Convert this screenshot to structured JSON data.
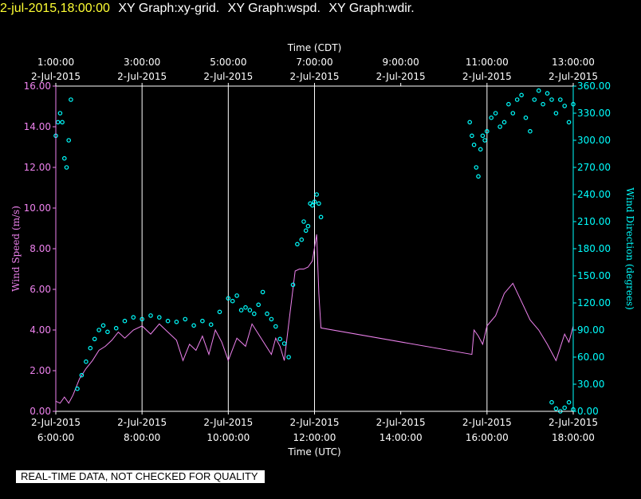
{
  "header": {
    "timestamp": "2-jul-2015,18:00:00",
    "graphs": [
      "XY Graph:xy-grid.",
      "XY Graph:wspd.",
      "XY Graph:wdir."
    ]
  },
  "disclaimer": "REAL-TIME DATA, NOT CHECKED FOR QUALITY",
  "colors": {
    "background": "#000000",
    "axis": "#ffffff",
    "grid": "#ffffff",
    "wind_speed": "#ee82ee",
    "wind_direction": "#00ffff",
    "timestamp": "#ffff33"
  },
  "chart_data": {
    "type": "line",
    "x_range_utc_hours": [
      6,
      18
    ],
    "top_axis": {
      "title": "Time (CDT)",
      "ticks": [
        {
          "t": 6,
          "time": "1:00:00",
          "date": "2-Jul-2015"
        },
        {
          "t": 8,
          "time": "3:00:00",
          "date": "2-Jul-2015"
        },
        {
          "t": 10,
          "time": "5:00:00",
          "date": "2-Jul-2015"
        },
        {
          "t": 12,
          "time": "7:00:00",
          "date": "2-Jul-2015"
        },
        {
          "t": 14,
          "time": "9:00:00",
          "date": "2-Jul-2015"
        },
        {
          "t": 16,
          "time": "11:00:00",
          "date": "2-Jul-2015"
        },
        {
          "t": 18,
          "time": "13:00:00",
          "date": "2-Jul-2015"
        }
      ]
    },
    "bottom_axis": {
      "title": "Time (UTC)",
      "ticks": [
        {
          "t": 6,
          "date": "2-Jul-2015",
          "time": "6:00:00"
        },
        {
          "t": 8,
          "date": "2-Jul-2015",
          "time": "8:00:00"
        },
        {
          "t": 10,
          "date": "2-Jul-2015",
          "time": "10:00:00"
        },
        {
          "t": 12,
          "date": "2-Jul-2015",
          "time": "12:00:00"
        },
        {
          "t": 14,
          "date": "2-Jul-2015",
          "time": "14:00:00"
        },
        {
          "t": 16,
          "date": "2-Jul-2015",
          "time": "16:00:00"
        },
        {
          "t": 18,
          "date": "2-Jul-2015",
          "time": "18:00:00"
        }
      ]
    },
    "grid_lines_utc": [
      8,
      10,
      12,
      16
    ],
    "left_axis": {
      "title": "Wind Speed (m/s)",
      "ylim": [
        0,
        16
      ],
      "ticks": [
        {
          "v": 0,
          "label": "0.00"
        },
        {
          "v": 2,
          "label": "2.00"
        },
        {
          "v": 4,
          "label": "4.00"
        },
        {
          "v": 6,
          "label": "6.00"
        },
        {
          "v": 8,
          "label": "8.00"
        },
        {
          "v": 10,
          "label": "10.00"
        },
        {
          "v": 12,
          "label": "12.00"
        },
        {
          "v": 14,
          "label": "14.00"
        },
        {
          "v": 16,
          "label": "16.00"
        }
      ]
    },
    "right_axis": {
      "title": "Wind Direction (degrees)",
      "ylim": [
        0,
        360
      ],
      "ticks": [
        {
          "v": 0,
          "label": "0.00"
        },
        {
          "v": 30,
          "label": "30.00"
        },
        {
          "v": 60,
          "label": "60.00"
        },
        {
          "v": 90,
          "label": "90.00"
        },
        {
          "v": 120,
          "label": "120.00"
        },
        {
          "v": 150,
          "label": "150.00"
        },
        {
          "v": 180,
          "label": "180.00"
        },
        {
          "v": 210,
          "label": "210.00"
        },
        {
          "v": 240,
          "label": "240.00"
        },
        {
          "v": 270,
          "label": "270.00"
        },
        {
          "v": 300,
          "label": "300.00"
        },
        {
          "v": 330,
          "label": "330.00"
        },
        {
          "v": 360,
          "label": "360.00"
        }
      ]
    },
    "series": [
      {
        "type": "line",
        "axis": "left",
        "color": "#ee82ee",
        "x": [
          6.0,
          6.1,
          6.2,
          6.3,
          6.4,
          6.55,
          6.7,
          6.85,
          7.0,
          7.15,
          7.3,
          7.45,
          7.6,
          7.8,
          8.0,
          8.2,
          8.4,
          8.6,
          8.8,
          8.95,
          9.1,
          9.25,
          9.4,
          9.55,
          9.7,
          9.85,
          10.0,
          10.2,
          10.4,
          10.55,
          10.7,
          10.85,
          11.0,
          11.1,
          11.2,
          11.3,
          11.4,
          11.55,
          11.65,
          11.75,
          11.85,
          11.95,
          12.05,
          12.1,
          12.15,
          15.65,
          15.7,
          15.8,
          15.9,
          16.0,
          16.2,
          16.4,
          16.6,
          16.8,
          17.0,
          17.2,
          17.4,
          17.6,
          17.8,
          17.9,
          18.0
        ],
        "y": [
          0.5,
          0.4,
          0.7,
          0.4,
          0.8,
          1.6,
          2.1,
          2.5,
          3.0,
          3.2,
          3.5,
          3.9,
          3.6,
          4.0,
          4.2,
          3.8,
          4.3,
          3.9,
          3.5,
          2.5,
          3.3,
          3.0,
          3.7,
          2.8,
          4.0,
          3.4,
          2.5,
          3.6,
          3.2,
          4.3,
          3.8,
          3.3,
          2.8,
          3.6,
          3.2,
          2.5,
          4.3,
          6.9,
          7.0,
          7.0,
          7.1,
          7.4,
          8.7,
          5.8,
          4.1,
          2.8,
          4.0,
          3.7,
          3.3,
          4.2,
          4.7,
          5.8,
          6.3,
          5.4,
          4.5,
          4.0,
          3.3,
          2.5,
          3.8,
          3.4,
          4.2
        ]
      },
      {
        "type": "scatter",
        "axis": "right",
        "color": "#00ffff",
        "x": [
          6.0,
          6.05,
          6.1,
          6.15,
          6.2,
          6.25,
          6.3,
          6.35,
          6.5,
          6.6,
          6.7,
          6.8,
          6.9,
          7.0,
          7.1,
          7.2,
          7.4,
          7.6,
          7.8,
          8.0,
          8.2,
          8.4,
          8.6,
          8.8,
          9.0,
          9.2,
          9.4,
          9.6,
          9.8,
          10.0,
          10.1,
          10.2,
          10.3,
          10.4,
          10.5,
          10.6,
          10.7,
          10.8,
          10.9,
          11.0,
          11.1,
          11.2,
          11.3,
          11.4,
          11.5,
          11.6,
          11.7,
          11.75,
          11.8,
          11.85,
          11.9,
          11.95,
          12.0,
          12.05,
          12.1,
          12.15,
          15.6,
          15.65,
          15.7,
          15.75,
          15.8,
          15.85,
          15.9,
          15.95,
          16.0,
          16.1,
          16.2,
          16.3,
          16.4,
          16.5,
          16.6,
          16.7,
          16.8,
          16.9,
          17.0,
          17.1,
          17.2,
          17.3,
          17.4,
          17.5,
          17.6,
          17.7,
          17.8,
          17.9,
          18.0,
          17.5,
          17.6,
          17.7,
          17.8,
          17.9,
          18.0
        ],
        "y": [
          305,
          320,
          330,
          320,
          280,
          270,
          300,
          345,
          25,
          40,
          55,
          70,
          80,
          90,
          95,
          88,
          92,
          100,
          104,
          102,
          106,
          104,
          100,
          99,
          102,
          95,
          100,
          96,
          110,
          125,
          122,
          128,
          112,
          115,
          112,
          108,
          118,
          132,
          108,
          102,
          94,
          80,
          75,
          60,
          140,
          185,
          190,
          210,
          200,
          205,
          230,
          228,
          232,
          240,
          230,
          215,
          320,
          305,
          295,
          270,
          260,
          290,
          305,
          300,
          310,
          325,
          330,
          315,
          320,
          340,
          330,
          345,
          350,
          325,
          310,
          345,
          355,
          340,
          352,
          345,
          330,
          345,
          338,
          320,
          340,
          10,
          3,
          0,
          4,
          10,
          2
        ]
      }
    ]
  }
}
